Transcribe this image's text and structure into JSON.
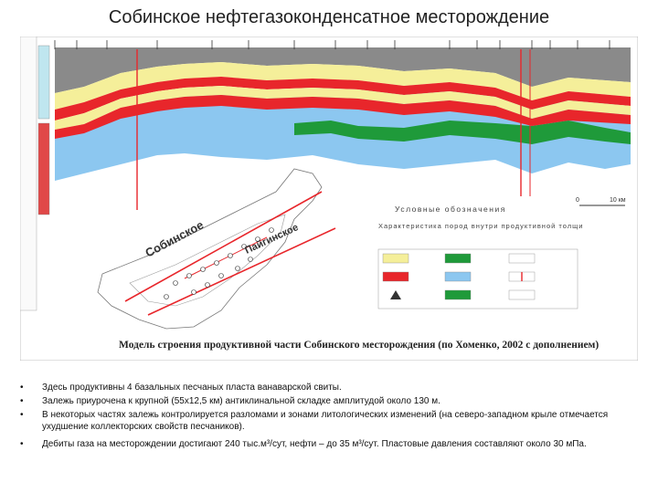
{
  "slide": {
    "title": "Собинское нефтегазоконденсатное месторождение"
  },
  "figure": {
    "caption": "Модель строения продуктивной части Собинского месторождения (по Хоменко, 2002 с дополнением)",
    "map_label_1": "Собинское",
    "map_label_2": "Пайгинское",
    "scale_start": "0",
    "scale_end": "10 км",
    "legend_title": "Условные обозначения",
    "legend_subtitle": "Характеристика пород внутри продуктивной толщи",
    "colors": {
      "gas": "#f5ef9a",
      "clay": "#e8262b",
      "oil": "#1f9a3a",
      "water": "#8cc7f0",
      "cap": "#8a8a8a",
      "basement": "#f2f2f2"
    }
  },
  "bullets": [
    {
      "marker": "•",
      "text": "Здесь продуктивны 4 базальных песчаных пласта ванаварской свиты."
    },
    {
      "marker": "•",
      "text": "Залежь приурочена к крупной (55x12,5 км) антиклинальной складке амплитудой около 130 м."
    },
    {
      "marker": "•",
      "text": "В некоторых частях залежь контролируется разломами и зонами литологических изменений (на северо-западном крыле отмечается ухудшение коллекторских свойств песчаников)."
    },
    {
      "marker": "•",
      "text": "Дебиты газа на месторождении достигают 240 тыс.м³/сут, нефти – до 35 м³/сут. Пластовые давления составляют около 30 мПа."
    }
  ]
}
